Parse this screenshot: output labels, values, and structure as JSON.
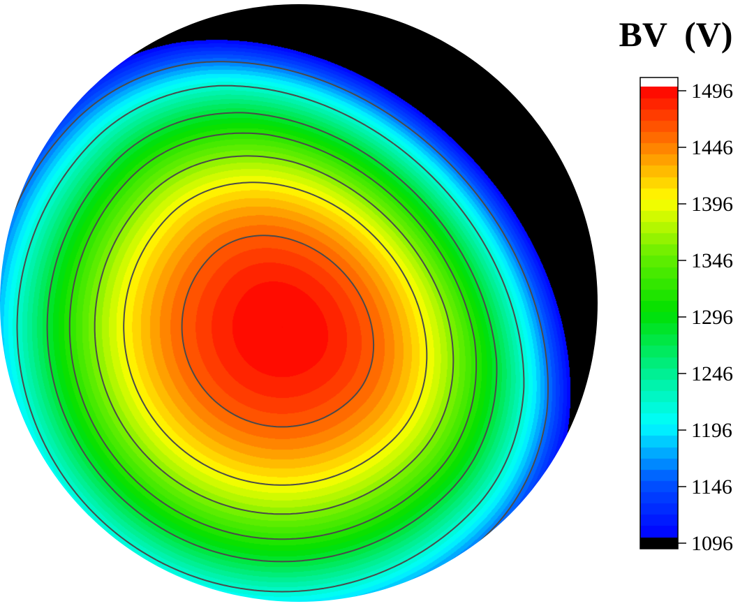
{
  "chart_data": {
    "type": "heatmap",
    "title": "BV  (V)",
    "colorbar": {
      "ticks": [
        1096,
        1146,
        1196,
        1246,
        1296,
        1346,
        1396,
        1446,
        1496
      ],
      "range": [
        1096,
        1496
      ],
      "under_color": "#000000",
      "over_color": "#ffffff",
      "colormap": [
        {
          "value": 1096,
          "color": "#0000ff"
        },
        {
          "value": 1146,
          "color": "#0055ff"
        },
        {
          "value": 1196,
          "color": "#00ffff"
        },
        {
          "value": 1246,
          "color": "#00ee88"
        },
        {
          "value": 1296,
          "color": "#00e000"
        },
        {
          "value": 1346,
          "color": "#66ee00"
        },
        {
          "value": 1396,
          "color": "#ffff00"
        },
        {
          "value": 1446,
          "color": "#ff7700"
        },
        {
          "value": 1496,
          "color": "#ff0000"
        }
      ]
    },
    "wafer_map": {
      "shape": "circle",
      "peak_value": 1496,
      "min_value": 1096,
      "contour_levels": [
        1156,
        1216,
        1276,
        1316,
        1356,
        1396,
        1456
      ]
    }
  }
}
